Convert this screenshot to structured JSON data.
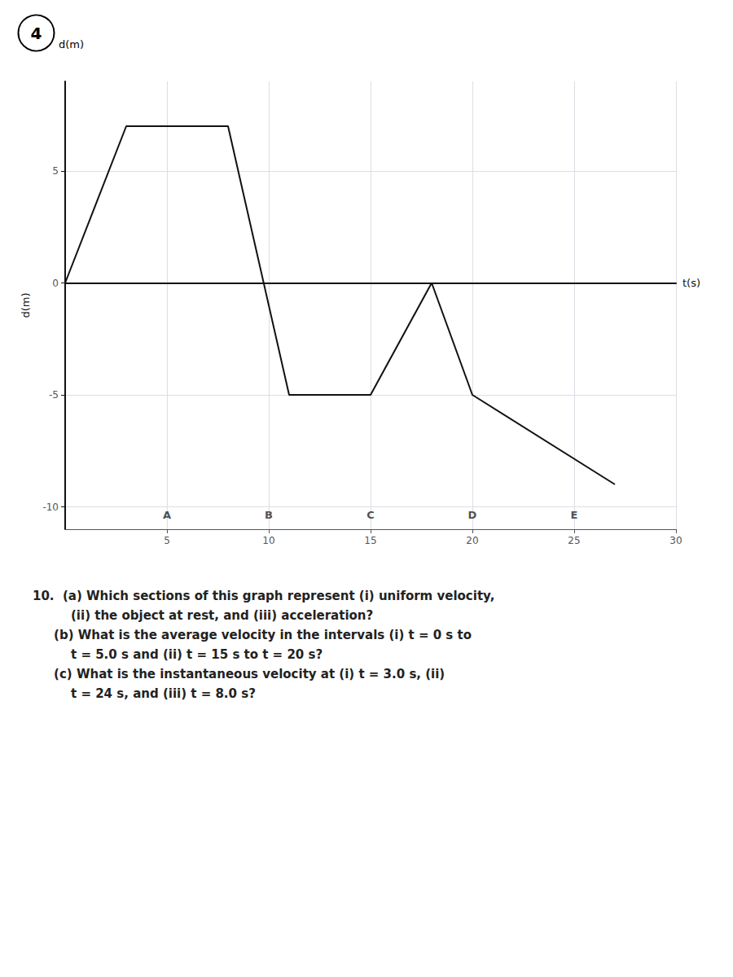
{
  "chart_data": {
    "type": "line",
    "xlabel": "t(s)",
    "ylabel": "d(m)",
    "x": [
      0,
      3,
      8,
      11,
      15,
      18,
      20,
      27
    ],
    "values": [
      0,
      7,
      7,
      -5,
      -5,
      0,
      -5,
      -9
    ],
    "color": "#111111",
    "xlim": [
      0,
      30
    ],
    "ylim": [
      -11,
      9
    ],
    "xticks": [
      5,
      10,
      15,
      20,
      25,
      30
    ],
    "yticks": [
      -10,
      -5,
      0,
      5
    ],
    "grid": true,
    "annotations": [
      {
        "text": "4",
        "marker": "circle"
      },
      {
        "text": "d(m)"
      },
      {
        "text": "A",
        "x": 5
      },
      {
        "text": "B",
        "x": 10
      },
      {
        "text": "C",
        "x": 15
      },
      {
        "text": "D",
        "x": 20
      },
      {
        "text": "E",
        "x": 25
      }
    ],
    "question": [
      "10.  (a) Which sections of this graph represent (i) uniform velocity,",
      "         (ii) the object at rest, and (iii) acceleration?",
      "     (b) What is the average velocity in the intervals (i) t = 0 s to",
      "         t = 5.0 s and (ii) t = 15 s to t = 20 s?",
      "     (c) What is the instantaneous velocity at (i) t = 3.0 s, (ii)",
      "         t = 24 s, and (iii) t = 8.0 s?"
    ]
  }
}
